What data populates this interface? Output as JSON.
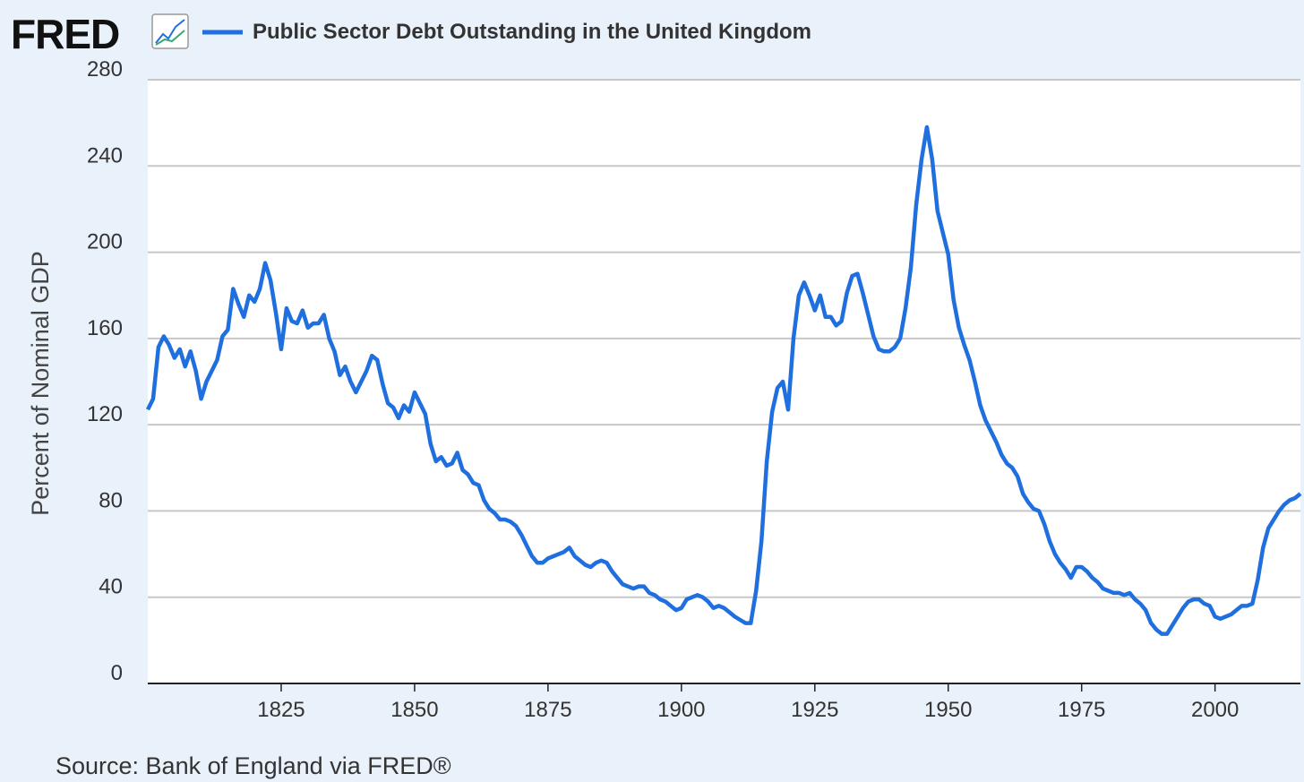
{
  "chart_data": {
    "type": "line",
    "logo": "FRED",
    "y_label": "Percent of Nominal GDP",
    "source": "Source: Bank of England via FRED®",
    "xlim": [
      1800,
      2016
    ],
    "xticks": [
      1825,
      1850,
      1875,
      1900,
      1925,
      1950,
      1975,
      2000
    ],
    "ylim": [
      0,
      280
    ],
    "yticks": [
      0,
      40,
      80,
      120,
      160,
      200,
      240,
      280
    ],
    "grid": true,
    "x": [
      1800,
      1801,
      1802,
      1803,
      1804,
      1805,
      1806,
      1807,
      1808,
      1809,
      1810,
      1811,
      1812,
      1813,
      1814,
      1815,
      1816,
      1817,
      1818,
      1819,
      1820,
      1821,
      1822,
      1823,
      1824,
      1825,
      1826,
      1827,
      1828,
      1829,
      1830,
      1831,
      1832,
      1833,
      1834,
      1835,
      1836,
      1837,
      1838,
      1839,
      1840,
      1841,
      1842,
      1843,
      1844,
      1845,
      1846,
      1847,
      1848,
      1849,
      1850,
      1851,
      1852,
      1853,
      1854,
      1855,
      1856,
      1857,
      1858,
      1859,
      1860,
      1861,
      1862,
      1863,
      1864,
      1865,
      1866,
      1867,
      1868,
      1869,
      1870,
      1871,
      1872,
      1873,
      1874,
      1875,
      1876,
      1877,
      1878,
      1879,
      1880,
      1881,
      1882,
      1883,
      1884,
      1885,
      1886,
      1887,
      1888,
      1889,
      1890,
      1891,
      1892,
      1893,
      1894,
      1895,
      1896,
      1897,
      1898,
      1899,
      1900,
      1901,
      1902,
      1903,
      1904,
      1905,
      1906,
      1907,
      1908,
      1909,
      1910,
      1911,
      1912,
      1913,
      1914,
      1915,
      1916,
      1917,
      1918,
      1919,
      1920,
      1921,
      1922,
      1923,
      1924,
      1925,
      1926,
      1927,
      1928,
      1929,
      1930,
      1931,
      1932,
      1933,
      1934,
      1935,
      1936,
      1937,
      1938,
      1939,
      1940,
      1941,
      1942,
      1943,
      1944,
      1945,
      1946,
      1947,
      1948,
      1949,
      1950,
      1951,
      1952,
      1953,
      1954,
      1955,
      1956,
      1957,
      1958,
      1959,
      1960,
      1961,
      1962,
      1963,
      1964,
      1965,
      1966,
      1967,
      1968,
      1969,
      1970,
      1971,
      1972,
      1973,
      1974,
      1975,
      1976,
      1977,
      1978,
      1979,
      1980,
      1981,
      1982,
      1983,
      1984,
      1985,
      1986,
      1987,
      1988,
      1989,
      1990,
      1991,
      1992,
      1993,
      1994,
      1995,
      1996,
      1997,
      1998,
      1999,
      2000,
      2001,
      2002,
      2003,
      2004,
      2005,
      2006,
      2007,
      2008,
      2009,
      2010,
      2011,
      2012,
      2013,
      2014,
      2015,
      2016
    ],
    "series": [
      {
        "name": "Public Sector Debt Outstanding in the United Kingdom",
        "color": "#1f6fde",
        "values": [
          127,
          132,
          156,
          161,
          157,
          151,
          155,
          147,
          154,
          145,
          132,
          140,
          145,
          150,
          161,
          164,
          183,
          176,
          170,
          180,
          177,
          183,
          195,
          187,
          172,
          155,
          174,
          168,
          167,
          173,
          165,
          167,
          167,
          171,
          160,
          154,
          143,
          147,
          140,
          135,
          140,
          145,
          152,
          150,
          139,
          130,
          128,
          123,
          129,
          126,
          135,
          130,
          125,
          111,
          103,
          105,
          101,
          102,
          107,
          99,
          97,
          93,
          92,
          85,
          81,
          79,
          76,
          76,
          75,
          73,
          69,
          64,
          59,
          56,
          56,
          58,
          59,
          60,
          61,
          63,
          59,
          57,
          55,
          54,
          56,
          57,
          56,
          52,
          49,
          46,
          45,
          44,
          45,
          45,
          42,
          41,
          39,
          38,
          36,
          34,
          35,
          39,
          40,
          41,
          40,
          38,
          35,
          36,
          35,
          33,
          31,
          29.5,
          28,
          28,
          43,
          66,
          103,
          126,
          137,
          140,
          127,
          160,
          180,
          186,
          180,
          173,
          180,
          170,
          170,
          166,
          168,
          181,
          189,
          190,
          181,
          171,
          161,
          155,
          154,
          154,
          156,
          160,
          174,
          193,
          222,
          243,
          258,
          243,
          219,
          209,
          199,
          178,
          165,
          157,
          150,
          140,
          129,
          122,
          117,
          112,
          106,
          102,
          100,
          96,
          88,
          84,
          81,
          80,
          74,
          66,
          60,
          56,
          53,
          49,
          54,
          54,
          52,
          49,
          47,
          44,
          43,
          42,
          42,
          41,
          42,
          39,
          37,
          34,
          28,
          25,
          23,
          23,
          27,
          31,
          35,
          38,
          39,
          39,
          37,
          36,
          31,
          30,
          31,
          32,
          34,
          36,
          36,
          37,
          48,
          63,
          72,
          76,
          80,
          83,
          85,
          86,
          88
        ]
      }
    ]
  }
}
